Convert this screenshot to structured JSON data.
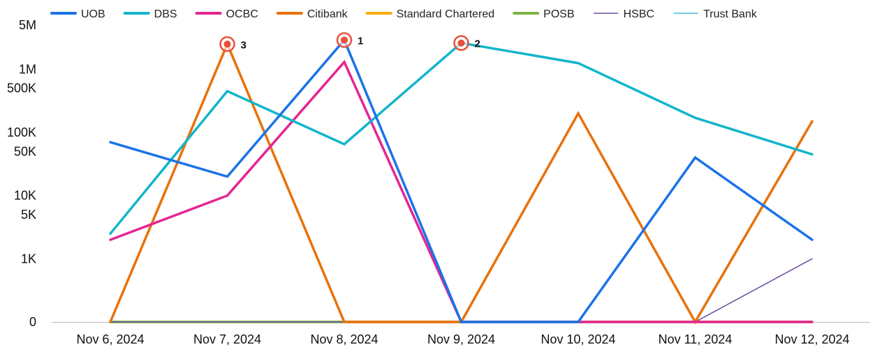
{
  "chart_data": {
    "type": "line",
    "title": "",
    "xlabel": "",
    "ylabel": "",
    "y_scale": "symlog",
    "ylim": [
      0,
      5000000
    ],
    "grid": false,
    "legend_position": "top",
    "categories": [
      "Nov 6, 2024",
      "Nov 7, 2024",
      "Nov 8, 2024",
      "Nov 9, 2024",
      "Nov 10, 2024",
      "Nov 11, 2024",
      "Nov 12, 2024"
    ],
    "y_ticks": [
      {
        "value": 0,
        "label": "0"
      },
      {
        "value": 1000,
        "label": "1K"
      },
      {
        "value": 5000,
        "label": "5K"
      },
      {
        "value": 10000,
        "label": "10K"
      },
      {
        "value": 50000,
        "label": "50K"
      },
      {
        "value": 100000,
        "label": "100K"
      },
      {
        "value": 500000,
        "label": "500K"
      },
      {
        "value": 1000000,
        "label": "1M"
      },
      {
        "value": 5000000,
        "label": "5M"
      }
    ],
    "series": [
      {
        "name": "UOB",
        "color": "#1a73e8",
        "width": 3.5,
        "values": [
          70000,
          20000,
          2900000,
          0,
          0,
          40000,
          2000
        ]
      },
      {
        "name": "DBS",
        "color": "#12b5cb",
        "width": 3.5,
        "values": [
          2500,
          450000,
          65000,
          2600000,
          1250000,
          170000,
          45000
        ]
      },
      {
        "name": "OCBC",
        "color": "#e52592",
        "width": 3.5,
        "values": [
          2000,
          10000,
          1300000,
          0,
          0,
          0,
          0
        ]
      },
      {
        "name": "Citibank",
        "color": "#e8710a",
        "width": 3.5,
        "values": [
          0,
          2500000,
          0,
          0,
          200000,
          0,
          150000
        ]
      },
      {
        "name": "Standard Chartered",
        "color": "#f9ab00",
        "width": 3.5,
        "values": [
          0,
          0,
          0,
          0,
          0,
          0,
          0
        ]
      },
      {
        "name": "POSB",
        "color": "#7cb342",
        "width": 3.5,
        "values": [
          0,
          0,
          0,
          0,
          0,
          0,
          0
        ]
      },
      {
        "name": "HSBC",
        "color": "#6f4ea0",
        "width": 1.5,
        "values": [
          0,
          0,
          0,
          0,
          0,
          0,
          1000
        ]
      },
      {
        "name": "Trust Bank",
        "color": "#4ab7d8",
        "width": 1.5,
        "values": [
          0,
          0,
          0,
          0,
          0,
          0,
          0
        ]
      }
    ],
    "annotations": [
      {
        "label": "1",
        "series": "UOB",
        "category": "Nov 8, 2024"
      },
      {
        "label": "2",
        "series": "DBS",
        "category": "Nov 9, 2024"
      },
      {
        "label": "3",
        "series": "Citibank",
        "category": "Nov 7, 2024"
      }
    ]
  }
}
